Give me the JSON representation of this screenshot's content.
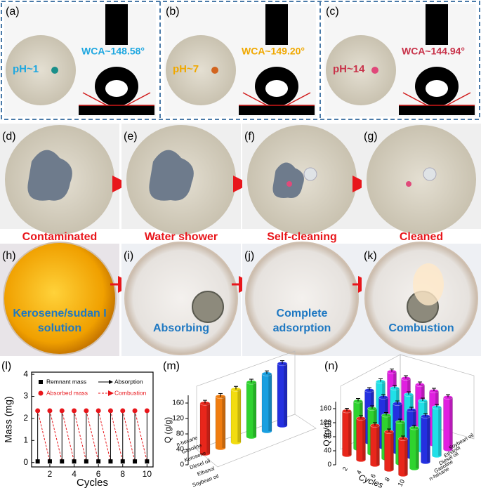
{
  "panels_top": [
    {
      "label": "(a)",
      "ph": "pH~1",
      "wca": "WCA~148.58°",
      "color": "#1ea7e0",
      "drop": "#1a8f8a"
    },
    {
      "label": "(b)",
      "ph": "pH~7",
      "wca": "WCA~149.20°",
      "color": "#f0a800",
      "drop": "#d2641e"
    },
    {
      "label": "(c)",
      "ph": "pH~14",
      "wca": "WCA~144.94°",
      "color": "#c8334a",
      "drop": "#e0487a"
    }
  ],
  "panels_clean": [
    {
      "label": "(d)",
      "caption": "Contaminated"
    },
    {
      "label": "(e)",
      "caption": "Water shower"
    },
    {
      "label": "(f)",
      "caption": "Self-cleaning"
    },
    {
      "label": "(g)",
      "caption": "Cleaned"
    }
  ],
  "panels_oil": [
    {
      "label": "(h)",
      "lines": [
        "Kerosene/sudan I",
        "solution"
      ]
    },
    {
      "label": "(i)",
      "lines": [
        "Absorbing"
      ]
    },
    {
      "label": "(j)",
      "lines": [
        "Complete",
        "adsorption"
      ]
    },
    {
      "label": "(k)",
      "lines": [
        "Combustion"
      ]
    }
  ],
  "chart_data": [
    {
      "type": "scatter",
      "label": "(l)",
      "xlabel": "Cycles",
      "ylabel": "Mass (mg)",
      "xlim": [
        0.5,
        10.5
      ],
      "xticks": [
        2,
        4,
        6,
        8,
        10
      ],
      "ylim": [
        -0.2,
        4.1
      ],
      "yticks": [
        0,
        1,
        2,
        3,
        4
      ],
      "x": [
        1,
        2,
        3,
        4,
        5,
        6,
        7,
        8,
        9,
        10
      ],
      "series": [
        {
          "name": "Remnant mass",
          "color": "#000000",
          "marker": "square",
          "values": [
            0.05,
            0.05,
            0.05,
            0.05,
            0.05,
            0.05,
            0.05,
            0.05,
            0.05,
            0.05
          ]
        },
        {
          "name": "Absorbed mass",
          "color": "#e8161b",
          "marker": "circle",
          "values": [
            2.35,
            2.35,
            2.35,
            2.35,
            2.35,
            2.35,
            2.35,
            2.35,
            2.35,
            2.35
          ]
        }
      ],
      "lines": [
        {
          "name": "Absorption",
          "color": "#000000",
          "dashed": false
        },
        {
          "name": "Combustion",
          "color": "#e8161b",
          "dashed": true
        }
      ]
    },
    {
      "type": "bar3d",
      "label": "(m)",
      "ylabel": "Q (g/g)",
      "ylim": [
        0,
        180
      ],
      "yticks": [
        0,
        40,
        80,
        120,
        160
      ],
      "categories": [
        "n-hexane",
        "Gasoline",
        "Kerosene",
        "Diesel oil",
        "Ethanol",
        "Soybean oil"
      ],
      "values": [
        130,
        133,
        137,
        141,
        148,
        160
      ],
      "errors": [
        8,
        8,
        8,
        8,
        8,
        8
      ],
      "colors": [
        "#e8261b",
        "#f07d10",
        "#f2dc10",
        "#2fd32f",
        "#1a9fe0",
        "#2430e0"
      ]
    },
    {
      "type": "bar3d-grid",
      "label": "(n)",
      "ylabel": "Q (g/g)",
      "xlabel": "Cycles",
      "ylim": [
        0,
        180
      ],
      "yticks": [
        0,
        40,
        80,
        120,
        160
      ],
      "x": [
        2,
        4,
        6,
        8,
        10
      ],
      "series": [
        {
          "name": "n-hexane",
          "color": "#e8261b",
          "values": [
            125,
            118,
            112,
            108,
            102
          ],
          "errors": [
            8,
            8,
            8,
            8,
            8
          ]
        },
        {
          "name": "Gasoline",
          "color": "#2fd32f",
          "values": [
            135,
            128,
            123,
            118,
            115
          ],
          "errors": [
            8,
            8,
            8,
            8,
            8
          ]
        },
        {
          "name": "Diesel oil",
          "color": "#2430e0",
          "values": [
            148,
            142,
            138,
            134,
            130
          ],
          "errors": [
            8,
            8,
            8,
            8,
            8
          ]
        },
        {
          "name": "Ethanol",
          "color": "#20e0e8",
          "values": [
            155,
            150,
            146,
            142,
            138
          ],
          "errors": [
            8,
            8,
            8,
            8,
            8
          ]
        },
        {
          "name": "Soybean oil",
          "color": "#e020e0",
          "values": [
            165,
            160,
            156,
            152,
            148
          ],
          "errors": [
            8,
            8,
            8,
            8,
            8
          ]
        }
      ]
    }
  ]
}
